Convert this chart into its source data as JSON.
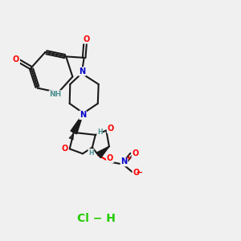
{
  "background_color": "#f0f0f0",
  "bond_color": "#1a1a1a",
  "bond_lw": 1.5,
  "atom_colors": {
    "O": "#ff0000",
    "N": "#0000cc",
    "H": "#4d9090",
    "Cl": "#22cc00",
    "plus": "#ff0000",
    "minus": "#ff0000"
  },
  "fs": 7.0,
  "sfs": 5.5,
  "hcl_color": "#22cc00",
  "hcl_fs": 10.0
}
